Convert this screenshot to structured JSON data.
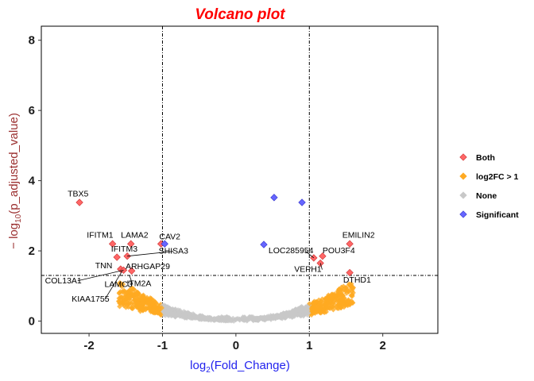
{
  "chart_data": {
    "type": "scatter",
    "title": "Volcano plot",
    "xlabel": "log2(Fold_Change)",
    "ylabel": "−log10(p_adjusted_value)",
    "xlim": [
      -2.65,
      2.75
    ],
    "ylim": [
      -0.35,
      8.4
    ],
    "xticks": [
      -2,
      -1,
      0,
      1,
      2
    ],
    "yticks": [
      0,
      2,
      4,
      6,
      8
    ],
    "thresholds": {
      "x": [
        -1,
        1
      ],
      "y": 1.3
    },
    "grid": false,
    "legend_position": "right",
    "colors": {
      "Both": "#ff6666",
      "log2FC > 1": "#ffaa22",
      "None": "#c8c8c8",
      "Significant": "#6666ff"
    },
    "series": [
      {
        "name": "Both",
        "points": [
          {
            "label": "TBX5",
            "x": -2.13,
            "y": 3.38
          },
          {
            "label": "IFITM1",
            "x": -1.68,
            "y": 2.2
          },
          {
            "label": "LAMA2",
            "x": -1.43,
            "y": 2.2
          },
          {
            "label": "CAV2",
            "x": -1.02,
            "y": 2.2
          },
          {
            "label": "IFITM3",
            "x": -1.62,
            "y": 1.82
          },
          {
            "label": "SHISA3",
            "x": -1.48,
            "y": 1.85
          },
          {
            "label": "TNN",
            "x": -1.57,
            "y": 1.48
          },
          {
            "label": "COL13A1",
            "x": -1.53,
            "y": 1.45
          },
          {
            "label": "ARHGAP29",
            "x": -1.42,
            "y": 1.43
          },
          {
            "label": "EMILIN2",
            "x": 1.55,
            "y": 2.2
          },
          {
            "label": "POU3F4",
            "x": 1.18,
            "y": 1.85
          },
          {
            "label": "LOC285954",
            "x": 1.06,
            "y": 1.8
          },
          {
            "label": "VEPH1",
            "x": 1.15,
            "y": 1.65
          },
          {
            "label": "DTHD1",
            "x": 1.55,
            "y": 1.38
          }
        ]
      },
      {
        "name": "Significant",
        "points": [
          {
            "x": -0.97,
            "y": 2.2
          },
          {
            "x": 0.52,
            "y": 3.52
          },
          {
            "x": 0.9,
            "y": 3.38
          },
          {
            "x": 0.38,
            "y": 2.18
          }
        ]
      }
    ],
    "annotations": [
      {
        "text": "TBX5",
        "x": -2.15,
        "y": 3.55,
        "px": -2.13,
        "py": 3.38
      },
      {
        "text": "IFITM1",
        "x": -1.85,
        "y": 2.38,
        "px": -1.68,
        "py": 2.2
      },
      {
        "text": "LAMA2",
        "x": -1.38,
        "y": 2.38,
        "px": -1.43,
        "py": 2.2
      },
      {
        "text": "CAV2",
        "x": -0.9,
        "y": 2.33,
        "px": -1.02,
        "py": 2.2
      },
      {
        "text": "SHISA3",
        "x": -0.85,
        "y": 1.92,
        "px": -1.48,
        "py": 1.85
      },
      {
        "text": "IFITM3",
        "x": -1.52,
        "y": 1.98,
        "px": -1.62,
        "py": 1.82
      },
      {
        "text": "TNN",
        "x": -1.8,
        "y": 1.5,
        "px": -1.57,
        "py": 1.48
      },
      {
        "text": "COL13A1",
        "x": -2.35,
        "y": 1.08,
        "px": -1.53,
        "py": 1.45
      },
      {
        "text": "ARHGAP29",
        "x": -1.2,
        "y": 1.48,
        "px": -1.42,
        "py": 1.43
      },
      {
        "text": "LAMC3",
        "x": -1.6,
        "y": 0.97,
        "px": -1.45,
        "py": 1.3
      },
      {
        "text": "ITM2A",
        "x": -1.32,
        "y": 1.0,
        "px": -1.2,
        "py": 1.25
      },
      {
        "text": "KIAA1755",
        "x": -1.98,
        "y": 0.55,
        "px": -1.55,
        "py": 1.42
      },
      {
        "text": "EMILIN2",
        "x": 1.67,
        "y": 2.38,
        "px": 1.55,
        "py": 2.2
      },
      {
        "text": "LOC285954",
        "x": 0.75,
        "y": 1.93,
        "px": 1.06,
        "py": 1.8
      },
      {
        "text": "POU3F4",
        "x": 1.4,
        "y": 1.93,
        "px": 1.18,
        "py": 1.85
      },
      {
        "text": "VEPH1",
        "x": 0.98,
        "y": 1.4,
        "px": 1.15,
        "py": 1.65
      },
      {
        "text": "DTHD1",
        "x": 1.65,
        "y": 1.1,
        "px": 1.55,
        "py": 1.38
      }
    ],
    "legend": [
      "Both",
      "log2FC > 1",
      "None",
      "Significant"
    ]
  }
}
